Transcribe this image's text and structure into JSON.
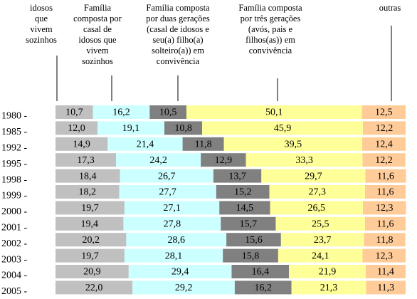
{
  "chart_data": {
    "type": "stacked-bar-horizontal",
    "categories": [
      "1980 -",
      "1985 -",
      "1992 -",
      "1995 -",
      "1998 -",
      "1999 -",
      "2000 -",
      "2001 -",
      "2002 -",
      "2003 -",
      "2004 -",
      "2005 -"
    ],
    "series": [
      {
        "name": "idosos\nque\nvivem\nsozinhos",
        "color": "#c0c0c0",
        "values": [
          10.7,
          12.0,
          14.9,
          17.3,
          18.4,
          18.2,
          19.7,
          19.4,
          20.2,
          19.7,
          20.9,
          22.0
        ],
        "value_labels": [
          "10,7",
          "12,0",
          "14,9",
          "17,3",
          "18,4",
          "18,2",
          "19,7",
          "19,4",
          "20,2",
          "19,7",
          "20,9",
          "22,0"
        ]
      },
      {
        "name": "Família\ncomposta por\ncasal de\nidosos que\nvivem\nsozinhos",
        "color": "#ccffff",
        "values": [
          16.2,
          19.1,
          21.4,
          24.2,
          26.7,
          27.7,
          27.1,
          27.8,
          28.6,
          28.1,
          29.4,
          29.2
        ],
        "value_labels": [
          "16,2",
          "19,1",
          "21,4",
          "24,2",
          "26,7",
          "27,7",
          "27,1",
          "27,8",
          "28,6",
          "28,1",
          "29,4",
          "29,2"
        ]
      },
      {
        "name": "Família composta\npor duas gerações\n(casal de idosos e\nseu(a) filho(a)\nsolteiro(a))  em\nconvivência",
        "color": "#808080",
        "values": [
          10.5,
          10.8,
          11.8,
          12.9,
          13.7,
          15.2,
          14.5,
          15.7,
          15.6,
          15.8,
          16.4,
          16.2
        ],
        "value_labels": [
          "10,5",
          "10,8",
          "11,8",
          "12,9",
          "13,7",
          "15,2",
          "14,5",
          "15,7",
          "15,6",
          "15,8",
          "16,4",
          "16,2"
        ]
      },
      {
        "name": "Família composta\npor três gerações\n(avós, pais e\nfilhos(as)) em\nconvivência",
        "color": "#ffff99",
        "values": [
          50.1,
          45.9,
          39.5,
          33.3,
          29.7,
          27.3,
          26.5,
          25.5,
          23.7,
          24.1,
          21.9,
          21.3
        ],
        "value_labels": [
          "50,1",
          "45,9",
          "39,5",
          "33,3",
          "29,7",
          "27,3",
          "26,5",
          "25,5",
          "23,7",
          "24,1",
          "21,9",
          "21,3"
        ]
      },
      {
        "name": "outras",
        "color": "#ffcc99",
        "values": [
          12.5,
          12.2,
          12.4,
          12.2,
          11.6,
          11.6,
          12.3,
          11.6,
          11.8,
          12.3,
          11.4,
          11.3
        ],
        "value_labels": [
          "12,5",
          "12,2",
          "12,4",
          "12,2",
          "11,6",
          "11,6",
          "12,3",
          "11,6",
          "11,8",
          "12,3",
          "11,4",
          "11,3"
        ]
      }
    ]
  }
}
